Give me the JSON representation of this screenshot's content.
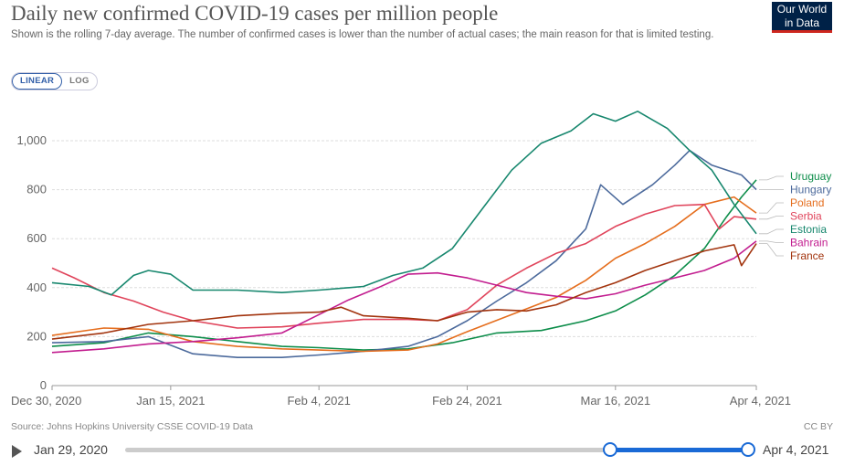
{
  "title": "Daily new confirmed COVID-19 cases per million people",
  "subtitle": "Shown is the rolling 7-day average. The number of confirmed cases is lower than the number of actual cases; the main reason for that is limited testing.",
  "logo": {
    "line1": "Our World",
    "line2": "in Data"
  },
  "scale_toggle": {
    "linear": "LINEAR",
    "log": "LOG",
    "selected": "LINEAR"
  },
  "footer": {
    "source": "Source: Johns Hopkins University CSSE COVID-19 Data",
    "license": "CC BY"
  },
  "timeline": {
    "start": "Jan 29, 2020",
    "end": "Apr 4, 2021",
    "range_start_fraction": 0.778,
    "range_end_fraction": 1.0
  },
  "chart_data": {
    "type": "line",
    "title": "Daily new confirmed COVID-19 cases per million people",
    "x_start": "2020-12-30",
    "x_end": "2021-04-04",
    "x_tick_labels": [
      "Dec 30, 2020",
      "Jan 15, 2021",
      "Feb 4, 2021",
      "Feb 24, 2021",
      "Mar 16, 2021",
      "Apr 4, 2021"
    ],
    "x_ticks": [
      "2020-12-30",
      "2021-01-15",
      "2021-02-04",
      "2021-02-24",
      "2021-03-16",
      "2021-04-04"
    ],
    "y_ticks": [
      0,
      200,
      400,
      600,
      800,
      "1,000"
    ],
    "ylim": [
      0,
      1100
    ],
    "grid": true,
    "legend_position": "right",
    "series": [
      {
        "name": "Uruguay",
        "color": "#0d8d4a",
        "points": [
          [
            "2020-12-30",
            160
          ],
          [
            "2021-01-06",
            175
          ],
          [
            "2021-01-12",
            215
          ],
          [
            "2021-01-18",
            200
          ],
          [
            "2021-01-24",
            180
          ],
          [
            "2021-01-30",
            160
          ],
          [
            "2021-02-04",
            155
          ],
          [
            "2021-02-10",
            145
          ],
          [
            "2021-02-16",
            150
          ],
          [
            "2021-02-22",
            175
          ],
          [
            "2021-02-28",
            215
          ],
          [
            "2021-03-06",
            225
          ],
          [
            "2021-03-12",
            265
          ],
          [
            "2021-03-16",
            305
          ],
          [
            "2021-03-20",
            370
          ],
          [
            "2021-03-24",
            450
          ],
          [
            "2021-03-28",
            560
          ],
          [
            "2021-03-31",
            690
          ],
          [
            "2021-04-02",
            770
          ],
          [
            "2021-04-04",
            840
          ]
        ]
      },
      {
        "name": "Hungary",
        "color": "#4c6a9c",
        "points": [
          [
            "2020-12-30",
            175
          ],
          [
            "2021-01-06",
            180
          ],
          [
            "2021-01-12",
            200
          ],
          [
            "2021-01-18",
            130
          ],
          [
            "2021-01-24",
            115
          ],
          [
            "2021-01-30",
            115
          ],
          [
            "2021-02-04",
            125
          ],
          [
            "2021-02-10",
            140
          ],
          [
            "2021-02-16",
            160
          ],
          [
            "2021-02-20",
            200
          ],
          [
            "2021-02-24",
            265
          ],
          [
            "2021-02-28",
            345
          ],
          [
            "2021-03-04",
            420
          ],
          [
            "2021-03-08",
            510
          ],
          [
            "2021-03-12",
            640
          ],
          [
            "2021-03-14",
            820
          ],
          [
            "2021-03-17",
            740
          ],
          [
            "2021-03-21",
            820
          ],
          [
            "2021-03-24",
            900
          ],
          [
            "2021-03-26",
            960
          ],
          [
            "2021-03-29",
            900
          ],
          [
            "2021-04-02",
            860
          ],
          [
            "2021-04-04",
            800
          ]
        ]
      },
      {
        "name": "Poland",
        "color": "#e56e1e",
        "points": [
          [
            "2020-12-30",
            205
          ],
          [
            "2021-01-06",
            235
          ],
          [
            "2021-01-12",
            230
          ],
          [
            "2021-01-18",
            180
          ],
          [
            "2021-01-24",
            160
          ],
          [
            "2021-01-30",
            150
          ],
          [
            "2021-02-04",
            145
          ],
          [
            "2021-02-10",
            140
          ],
          [
            "2021-02-16",
            145
          ],
          [
            "2021-02-20",
            170
          ],
          [
            "2021-02-24",
            220
          ],
          [
            "2021-03-02",
            290
          ],
          [
            "2021-03-08",
            360
          ],
          [
            "2021-03-12",
            430
          ],
          [
            "2021-03-16",
            520
          ],
          [
            "2021-03-20",
            580
          ],
          [
            "2021-03-24",
            650
          ],
          [
            "2021-03-28",
            740
          ],
          [
            "2021-04-01",
            770
          ],
          [
            "2021-04-04",
            705
          ]
        ]
      },
      {
        "name": "Serbia",
        "color": "#e0445b",
        "points": [
          [
            "2020-12-30",
            480
          ],
          [
            "2021-01-02",
            440
          ],
          [
            "2021-01-06",
            380
          ],
          [
            "2021-01-10",
            345
          ],
          [
            "2021-01-14",
            300
          ],
          [
            "2021-01-18",
            265
          ],
          [
            "2021-01-24",
            235
          ],
          [
            "2021-01-30",
            240
          ],
          [
            "2021-02-04",
            255
          ],
          [
            "2021-02-10",
            270
          ],
          [
            "2021-02-16",
            270
          ],
          [
            "2021-02-20",
            265
          ],
          [
            "2021-02-24",
            310
          ],
          [
            "2021-02-28",
            410
          ],
          [
            "2021-03-04",
            480
          ],
          [
            "2021-03-08",
            540
          ],
          [
            "2021-03-12",
            580
          ],
          [
            "2021-03-16",
            650
          ],
          [
            "2021-03-20",
            700
          ],
          [
            "2021-03-24",
            735
          ],
          [
            "2021-03-28",
            740
          ],
          [
            "2021-03-30",
            640
          ],
          [
            "2021-04-01",
            690
          ],
          [
            "2021-04-04",
            680
          ]
        ]
      },
      {
        "name": "Estonia",
        "color": "#17876e",
        "points": [
          [
            "2020-12-30",
            420
          ],
          [
            "2021-01-04",
            405
          ],
          [
            "2021-01-07",
            370
          ],
          [
            "2021-01-10",
            450
          ],
          [
            "2021-01-12",
            470
          ],
          [
            "2021-01-15",
            455
          ],
          [
            "2021-01-18",
            390
          ],
          [
            "2021-01-24",
            390
          ],
          [
            "2021-01-30",
            380
          ],
          [
            "2021-02-04",
            390
          ],
          [
            "2021-02-10",
            405
          ],
          [
            "2021-02-14",
            450
          ],
          [
            "2021-02-18",
            480
          ],
          [
            "2021-02-22",
            560
          ],
          [
            "2021-02-26",
            720
          ],
          [
            "2021-03-02",
            880
          ],
          [
            "2021-03-06",
            990
          ],
          [
            "2021-03-10",
            1040
          ],
          [
            "2021-03-13",
            1110
          ],
          [
            "2021-03-16",
            1080
          ],
          [
            "2021-03-19",
            1120
          ],
          [
            "2021-03-23",
            1050
          ],
          [
            "2021-03-26",
            960
          ],
          [
            "2021-03-29",
            880
          ],
          [
            "2021-04-01",
            740
          ],
          [
            "2021-04-04",
            620
          ]
        ]
      },
      {
        "name": "Bahrain",
        "color": "#c21d8f",
        "points": [
          [
            "2020-12-30",
            135
          ],
          [
            "2021-01-06",
            150
          ],
          [
            "2021-01-12",
            170
          ],
          [
            "2021-01-18",
            180
          ],
          [
            "2021-01-24",
            195
          ],
          [
            "2021-01-30",
            215
          ],
          [
            "2021-02-04",
            290
          ],
          [
            "2021-02-08",
            350
          ],
          [
            "2021-02-12",
            400
          ],
          [
            "2021-02-16",
            455
          ],
          [
            "2021-02-20",
            460
          ],
          [
            "2021-02-24",
            440
          ],
          [
            "2021-02-28",
            410
          ],
          [
            "2021-03-04",
            380
          ],
          [
            "2021-03-08",
            365
          ],
          [
            "2021-03-12",
            355
          ],
          [
            "2021-03-16",
            375
          ],
          [
            "2021-03-20",
            410
          ],
          [
            "2021-03-24",
            440
          ],
          [
            "2021-03-28",
            470
          ],
          [
            "2021-04-01",
            520
          ],
          [
            "2021-04-04",
            590
          ]
        ]
      },
      {
        "name": "France",
        "color": "#a2340e",
        "points": [
          [
            "2020-12-30",
            190
          ],
          [
            "2021-01-06",
            215
          ],
          [
            "2021-01-12",
            250
          ],
          [
            "2021-01-18",
            265
          ],
          [
            "2021-01-24",
            285
          ],
          [
            "2021-01-30",
            295
          ],
          [
            "2021-02-04",
            300
          ],
          [
            "2021-02-07",
            320
          ],
          [
            "2021-02-10",
            285
          ],
          [
            "2021-02-16",
            275
          ],
          [
            "2021-02-20",
            265
          ],
          [
            "2021-02-24",
            300
          ],
          [
            "2021-02-28",
            310
          ],
          [
            "2021-03-04",
            305
          ],
          [
            "2021-03-08",
            330
          ],
          [
            "2021-03-12",
            380
          ],
          [
            "2021-03-16",
            420
          ],
          [
            "2021-03-20",
            470
          ],
          [
            "2021-03-24",
            510
          ],
          [
            "2021-03-28",
            550
          ],
          [
            "2021-04-01",
            575
          ],
          [
            "2021-04-02",
            490
          ],
          [
            "2021-04-04",
            580
          ]
        ]
      }
    ]
  }
}
